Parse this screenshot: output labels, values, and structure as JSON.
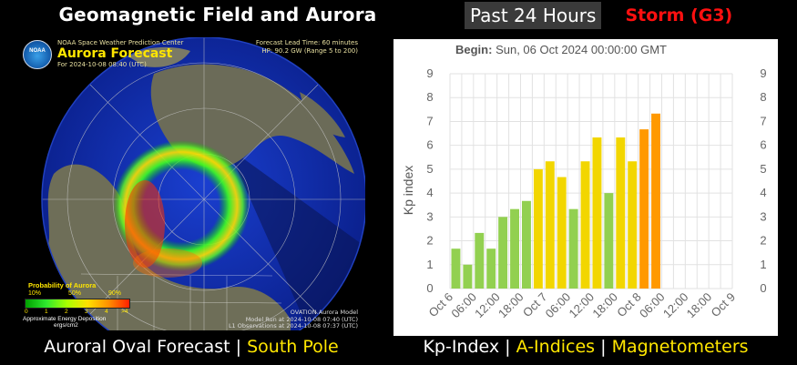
{
  "header": {
    "left_title": "Geomagnetic Field and Aurora",
    "period_badge": "Past 24 Hours",
    "storm_status": "Storm (G3)"
  },
  "aurora_map": {
    "org_line": "NOAA Space Weather Prediction Center",
    "forecast_title": "Aurora Forecast",
    "forecast_for": "For 2024-10-08 08:40 (UTC)",
    "lead_time": "Forecast Lead Time:  60 minutes",
    "hp_line": "HP:  90.2 GW (Range 5 to 200)",
    "logo_text": "NOAA",
    "legend_title": "Probability of Aurora",
    "legend_pcts": [
      "10%",
      "50%",
      "90%"
    ],
    "legend_ticks": [
      "0",
      "1",
      "2",
      "3",
      "4",
      ">4"
    ],
    "legend_unit_1": "Approximate Energy Deposition",
    "legend_unit_2": "ergs/cm2",
    "model_line_1": "OVATION Aurora Model",
    "model_line_2": "Model Run at 2024-10-08 07:40 (UTC)",
    "model_line_3": "L1 Observations at 2024-10-08 07:37 (UTC)"
  },
  "captions": {
    "auroral_oval": "Auroral Oval Forecast",
    "separator": " | ",
    "south_pole_link": "South Pole",
    "kp_index": "Kp-Index",
    "a_indices_link": "A-Indices",
    "magnetometers_link": "Magnetometers"
  },
  "chart_data": {
    "type": "bar",
    "title_label": "Begin:",
    "title_value": "Sun, 06 Oct 2024 00:00:00 GMT",
    "ylabel": "Kp index",
    "ylim": [
      0,
      9
    ],
    "yticks": [
      0,
      1,
      2,
      3,
      4,
      5,
      6,
      7,
      8,
      9
    ],
    "xtick_labels": [
      "Oct 6",
      "06:00",
      "12:00",
      "18:00",
      "Oct 7",
      "06:00",
      "12:00",
      "18:00",
      "Oct 8",
      "06:00",
      "12:00",
      "18:00",
      "Oct 9"
    ],
    "bar_interval_hours": 3,
    "values": [
      1.67,
      1.0,
      2.33,
      1.67,
      3.0,
      3.33,
      3.67,
      5.0,
      5.33,
      4.67,
      3.33,
      5.33,
      6.33,
      4.0,
      6.33,
      5.33,
      6.67,
      7.33
    ],
    "bar_colors": [
      "#92d050",
      "#92d050",
      "#92d050",
      "#92d050",
      "#92d050",
      "#92d050",
      "#92d050",
      "#f2d600",
      "#f2d600",
      "#f2d600",
      "#92d050",
      "#f2d600",
      "#f2d600",
      "#92d050",
      "#f2d600",
      "#f2d600",
      "#ff9900",
      "#ff9900"
    ],
    "grid": true
  }
}
